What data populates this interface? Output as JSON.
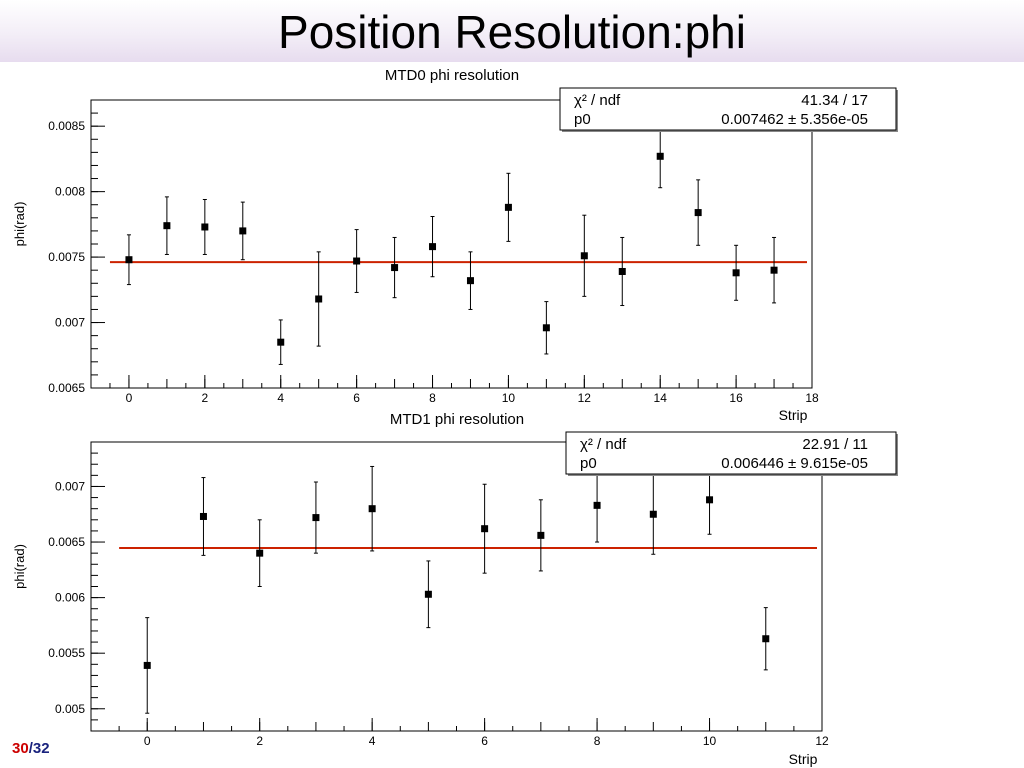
{
  "slide": {
    "title": "Position Resolution:phi",
    "page_current": "30",
    "page_separator": "/",
    "page_total": "32"
  },
  "colors": {
    "fit_line": "#cc2200",
    "marker": "#000000",
    "title_band": "#e7dcef"
  },
  "chart_data": [
    {
      "type": "scatter",
      "title": "MTD0 phi resolution",
      "xlabel": "Strip",
      "ylabel": "phi(rad)",
      "xlim": [
        -1,
        18
      ],
      "ylim": [
        0.0065,
        0.0087
      ],
      "xticks": [
        0,
        2,
        4,
        6,
        8,
        10,
        12,
        14,
        16,
        18
      ],
      "yticks": [
        0.0065,
        0.007,
        0.0075,
        0.008,
        0.0085
      ],
      "ytick_labels": [
        "0.0065",
        "0.007",
        "0.0075",
        "0.008",
        "0.0085"
      ],
      "grid": false,
      "x": [
        0,
        1,
        2,
        3,
        4,
        5,
        6,
        7,
        8,
        9,
        10,
        11,
        12,
        13,
        14,
        15,
        16,
        17
      ],
      "y": [
        0.00748,
        0.00774,
        0.00773,
        0.0077,
        0.00685,
        0.00718,
        0.00747,
        0.00742,
        0.00758,
        0.00732,
        0.00788,
        0.00696,
        0.00751,
        0.00739,
        0.00827,
        0.00784,
        0.00738,
        0.0074
      ],
      "err": [
        0.00019,
        0.00022,
        0.00021,
        0.00022,
        0.00017,
        0.00036,
        0.00024,
        0.00023,
        0.00023,
        0.00022,
        0.00026,
        0.0002,
        0.00031,
        0.00026,
        0.00024,
        0.00025,
        0.00021,
        0.00025
      ],
      "fit": {
        "value": 0.007462
      },
      "stats": {
        "chi2_label": "χ² / ndf",
        "chi2_value": "41.34 / 17",
        "p0_label": "p0",
        "p0_value": "0.007462 ± 5.356e-05"
      }
    },
    {
      "type": "scatter",
      "title": "MTD1 phi resolution",
      "xlabel": "Strip",
      "ylabel": "phi(rad)",
      "xlim": [
        -1,
        12
      ],
      "ylim": [
        0.0048,
        0.0074
      ],
      "xticks": [
        0,
        2,
        4,
        6,
        8,
        10,
        12
      ],
      "yticks": [
        0.005,
        0.0055,
        0.006,
        0.0065,
        0.007
      ],
      "ytick_labels": [
        "0.005",
        "0.0055",
        "0.006",
        "0.0065",
        "0.007"
      ],
      "grid": false,
      "x": [
        0,
        1,
        2,
        3,
        4,
        5,
        6,
        7,
        8,
        9,
        10,
        11
      ],
      "y": [
        0.00539,
        0.00673,
        0.0064,
        0.00672,
        0.0068,
        0.00603,
        0.00662,
        0.00656,
        0.00683,
        0.00675,
        0.00688,
        0.00563
      ],
      "err": [
        0.00043,
        0.00035,
        0.0003,
        0.00032,
        0.00038,
        0.0003,
        0.0004,
        0.00032,
        0.00033,
        0.00036,
        0.00031,
        0.00028
      ],
      "fit": {
        "value": 0.006446
      },
      "stats": {
        "chi2_label": "χ² / ndf",
        "chi2_value": "22.91 / 11",
        "p0_label": "p0",
        "p0_value": "0.006446 ± 9.615e-05"
      }
    }
  ]
}
